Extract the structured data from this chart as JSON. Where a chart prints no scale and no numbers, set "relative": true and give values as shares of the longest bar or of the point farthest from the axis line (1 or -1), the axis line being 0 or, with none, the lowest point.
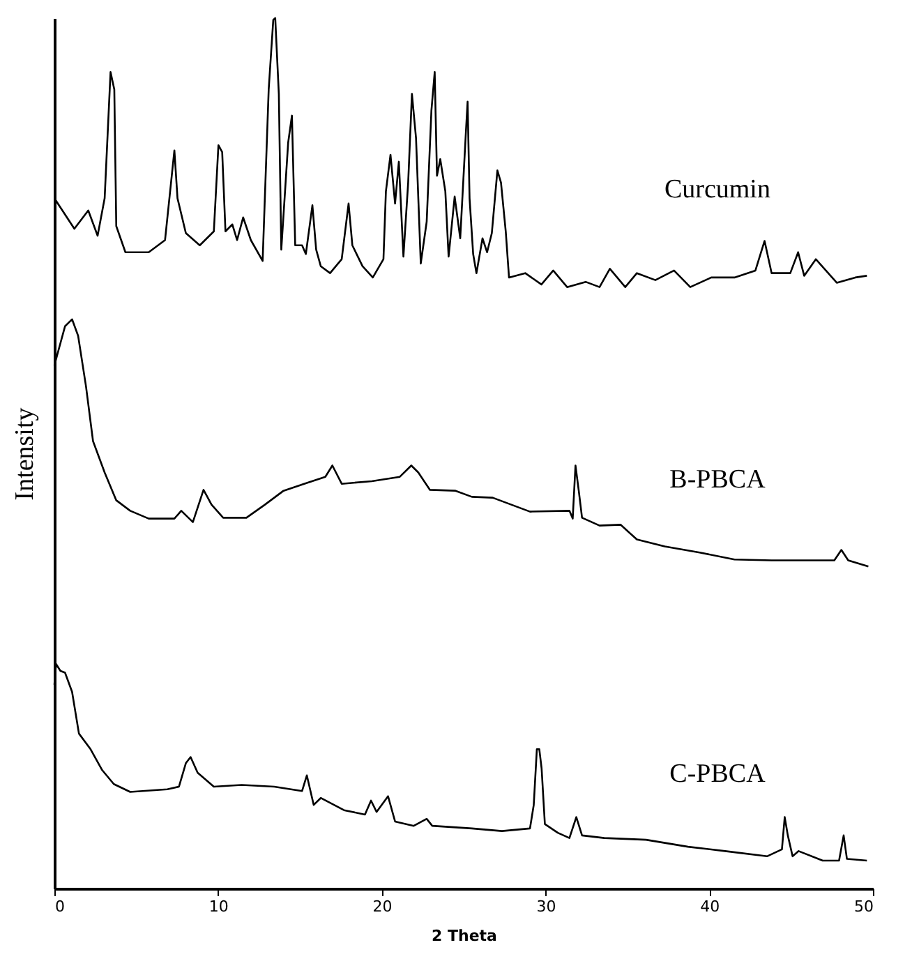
{
  "chart_data": {
    "type": "line",
    "xlabel": "2 Theta",
    "ylabel": "Intensity",
    "relative": true,
    "xlim": [
      0,
      50
    ],
    "xticks": [
      0,
      10,
      20,
      30,
      40,
      50
    ],
    "grid": false,
    "legend": false,
    "marker": "none",
    "line_style": "solid",
    "series": [
      {
        "name": "Curcumin",
        "color": "#000000",
        "x": [
          0,
          1.22,
          2.07,
          2.64,
          3.07,
          3.43,
          3.66,
          3.78,
          4.34,
          5.76,
          6.76,
          7.33,
          7.52,
          8.03,
          8.88,
          9.74,
          10.02,
          10.25,
          10.45,
          10.87,
          11.16,
          11.53,
          12.0,
          12.72,
          13.09,
          13.37,
          13.49,
          13.71,
          13.86,
          14.28,
          14.51,
          14.71,
          15.13,
          15.36,
          15.76,
          15.99,
          16.27,
          16.84,
          17.55,
          17.97,
          18.2,
          18.82,
          19.45,
          20.1,
          20.25,
          20.53,
          20.81,
          21.04,
          21.32,
          21.61,
          21.84,
          22.09,
          22.38,
          22.74,
          23.03,
          23.23,
          23.37,
          23.57,
          23.88,
          24.08,
          24.45,
          24.79,
          25.13,
          25.24,
          25.36,
          25.58,
          25.78,
          26.15,
          26.43,
          26.72,
          27.06,
          27.28,
          27.57,
          27.77,
          28.76,
          29.75,
          30.47,
          31.32,
          32.45,
          33.3,
          33.93,
          34.87,
          35.58,
          36.71,
          37.85,
          38.84,
          40.12,
          41.54,
          42.82,
          43.38,
          43.81,
          44.95,
          45.43,
          45.8,
          46.51,
          47.79,
          48.92,
          49.63
        ],
        "values": [
          0.793,
          0.758,
          0.779,
          0.75,
          0.793,
          0.938,
          0.918,
          0.761,
          0.731,
          0.731,
          0.745,
          0.848,
          0.793,
          0.753,
          0.739,
          0.755,
          0.854,
          0.846,
          0.755,
          0.763,
          0.745,
          0.771,
          0.745,
          0.721,
          0.918,
          0.998,
          1.0,
          0.913,
          0.734,
          0.857,
          0.888,
          0.739,
          0.739,
          0.729,
          0.785,
          0.734,
          0.715,
          0.707,
          0.723,
          0.787,
          0.739,
          0.715,
          0.702,
          0.723,
          0.801,
          0.843,
          0.787,
          0.835,
          0.726,
          0.811,
          0.913,
          0.862,
          0.718,
          0.766,
          0.894,
          0.938,
          0.819,
          0.838,
          0.801,
          0.726,
          0.795,
          0.747,
          0.867,
          0.904,
          0.793,
          0.729,
          0.707,
          0.747,
          0.731,
          0.753,
          0.825,
          0.811,
          0.755,
          0.702,
          0.707,
          0.694,
          0.71,
          0.691,
          0.697,
          0.691,
          0.712,
          0.691,
          0.707,
          0.699,
          0.71,
          0.691,
          0.702,
          0.702,
          0.71,
          0.744,
          0.707,
          0.707,
          0.731,
          0.704,
          0.723,
          0.696,
          0.702,
          0.704
        ]
      },
      {
        "name": "B-PBCA",
        "color": "#000000",
        "x": [
          0,
          0.23,
          0.65,
          1.08,
          1.45,
          1.93,
          2.36,
          3.07,
          3.78,
          4.63,
          5.76,
          7.33,
          7.75,
          8.46,
          9.11,
          9.6,
          10.31,
          11.73,
          12.86,
          14.0,
          15.42,
          16.55,
          16.98,
          17.55,
          19.39,
          21.1,
          21.8,
          22.23,
          22.94,
          24.5,
          25.5,
          26.77,
          29.05,
          31.46,
          31.66,
          31.83,
          32.03,
          32.23,
          33.3,
          34.58,
          35.58,
          37.28,
          39.41,
          41.54,
          43.81,
          46.36,
          47.64,
          48.07,
          48.49,
          49.72
        ],
        "values": [
          0.601,
          0.617,
          0.646,
          0.654,
          0.635,
          0.577,
          0.514,
          0.478,
          0.446,
          0.434,
          0.425,
          0.425,
          0.434,
          0.421,
          0.458,
          0.441,
          0.426,
          0.426,
          0.441,
          0.457,
          0.466,
          0.473,
          0.486,
          0.465,
          0.468,
          0.473,
          0.486,
          0.478,
          0.458,
          0.457,
          0.45,
          0.449,
          0.433,
          0.434,
          0.425,
          0.486,
          0.457,
          0.426,
          0.417,
          0.418,
          0.401,
          0.393,
          0.386,
          0.378,
          0.377,
          0.377,
          0.377,
          0.389,
          0.377,
          0.37
        ]
      },
      {
        "name": "C-PBCA",
        "color": "#000000",
        "x": [
          0,
          0.1,
          0.37,
          0.65,
          1.08,
          1.5,
          2.21,
          2.92,
          3.63,
          4.63,
          6.9,
          7.61,
          8.03,
          8.32,
          8.75,
          9.74,
          11.44,
          13.43,
          15.13,
          15.42,
          15.84,
          16.27,
          17.69,
          18.97,
          19.34,
          19.68,
          20.38,
          20.81,
          21.95,
          22.74,
          23.08,
          25.5,
          27.34,
          29.05,
          29.28,
          29.47,
          29.62,
          29.76,
          29.96,
          30.75,
          31.46,
          31.88,
          32.23,
          33.59,
          36.14,
          38.7,
          40.97,
          43.53,
          44.44,
          44.61,
          44.8,
          45.09,
          45.46,
          46.93,
          47.93,
          48.21,
          48.41,
          49.63
        ],
        "values": [
          0.234,
          0.258,
          0.25,
          0.248,
          0.226,
          0.178,
          0.16,
          0.136,
          0.12,
          0.111,
          0.114,
          0.117,
          0.144,
          0.151,
          0.133,
          0.117,
          0.119,
          0.117,
          0.112,
          0.13,
          0.096,
          0.104,
          0.09,
          0.085,
          0.101,
          0.088,
          0.106,
          0.077,
          0.072,
          0.08,
          0.072,
          0.069,
          0.066,
          0.069,
          0.096,
          0.16,
          0.16,
          0.138,
          0.074,
          0.064,
          0.058,
          0.082,
          0.061,
          0.058,
          0.056,
          0.048,
          0.043,
          0.037,
          0.045,
          0.082,
          0.061,
          0.037,
          0.043,
          0.032,
          0.032,
          0.061,
          0.034,
          0.032
        ]
      }
    ]
  }
}
